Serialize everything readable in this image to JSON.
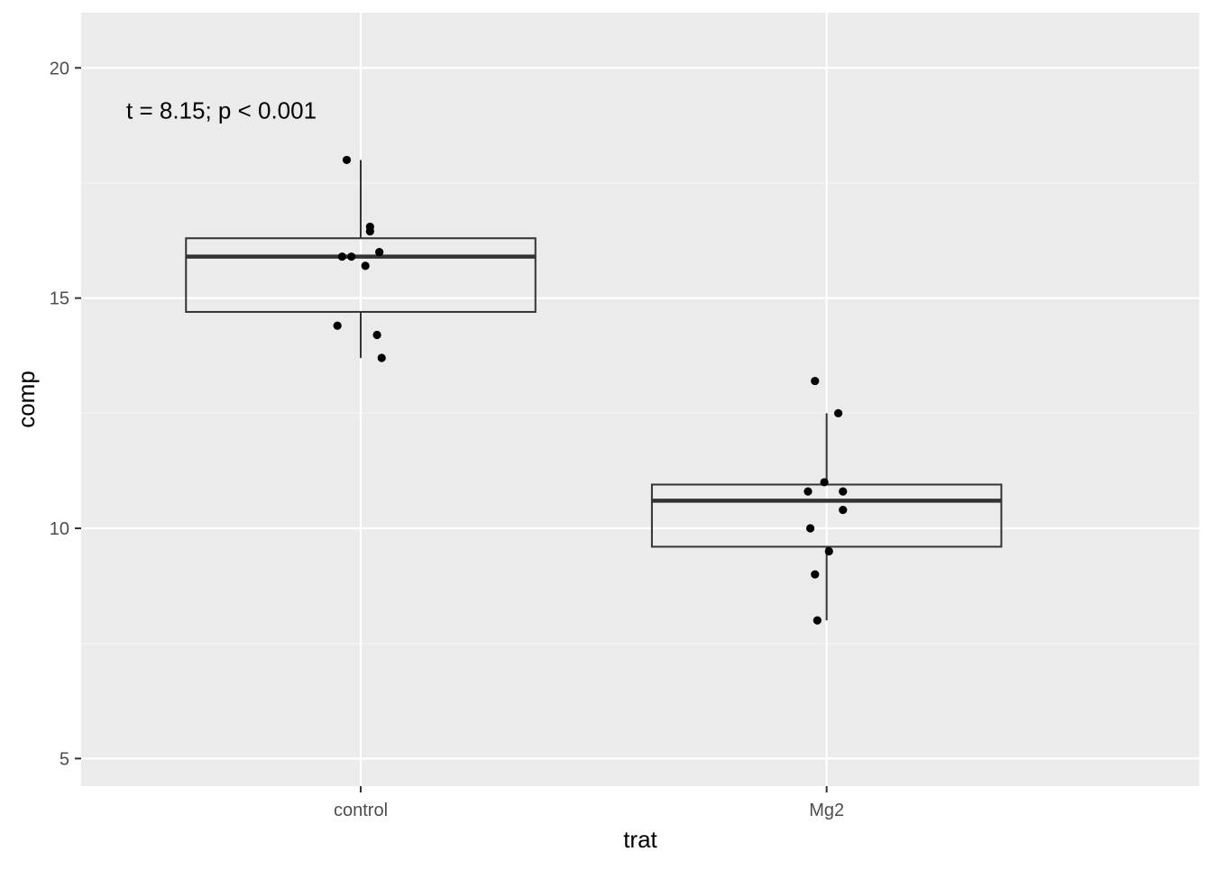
{
  "chart_data": {
    "type": "boxplot",
    "xlabel": "trat",
    "ylabel": "comp",
    "categories": [
      "control",
      "Mg2"
    ],
    "ylim": [
      4.4,
      21.2
    ],
    "y_ticks": [
      5,
      10,
      15,
      20
    ],
    "annotation": "t = 8.15; p < 0.001",
    "grid": true,
    "boxes": [
      {
        "category": "control",
        "whisker_low": 13.7,
        "q1": 14.7,
        "median": 15.9,
        "q3": 16.3,
        "whisker_high": 18.0
      },
      {
        "category": "Mg2",
        "whisker_low": 8.0,
        "q1": 9.6,
        "median": 10.6,
        "q3": 10.95,
        "whisker_high": 12.5
      }
    ],
    "points": [
      {
        "category": "control",
        "jitter": -0.03,
        "y": 18.0
      },
      {
        "category": "control",
        "jitter": 0.02,
        "y": 16.55
      },
      {
        "category": "control",
        "jitter": 0.02,
        "y": 16.45
      },
      {
        "category": "control",
        "jitter": 0.04,
        "y": 16.0
      },
      {
        "category": "control",
        "jitter": -0.04,
        "y": 15.9
      },
      {
        "category": "control",
        "jitter": -0.02,
        "y": 15.9
      },
      {
        "category": "control",
        "jitter": 0.01,
        "y": 15.7
      },
      {
        "category": "control",
        "jitter": -0.05,
        "y": 14.4
      },
      {
        "category": "control",
        "jitter": 0.035,
        "y": 14.2
      },
      {
        "category": "control",
        "jitter": 0.045,
        "y": 13.7
      },
      {
        "category": "Mg2",
        "jitter": -0.025,
        "y": 13.2
      },
      {
        "category": "Mg2",
        "jitter": 0.025,
        "y": 12.5
      },
      {
        "category": "Mg2",
        "jitter": -0.005,
        "y": 11.0
      },
      {
        "category": "Mg2",
        "jitter": -0.04,
        "y": 10.8
      },
      {
        "category": "Mg2",
        "jitter": 0.035,
        "y": 10.8
      },
      {
        "category": "Mg2",
        "jitter": 0.035,
        "y": 10.4
      },
      {
        "category": "Mg2",
        "jitter": -0.035,
        "y": 10.0
      },
      {
        "category": "Mg2",
        "jitter": 0.005,
        "y": 9.5
      },
      {
        "category": "Mg2",
        "jitter": -0.025,
        "y": 9.0
      },
      {
        "category": "Mg2",
        "jitter": -0.02,
        "y": 8.0
      }
    ],
    "colors": {
      "panel_background": "#EBEBEB",
      "grid_major": "#FFFFFF",
      "grid_minor": "#F5F5F5",
      "box_line": "#333333",
      "point": "#000000",
      "axis_text": "#4D4D4D",
      "title_text": "#000000"
    }
  }
}
